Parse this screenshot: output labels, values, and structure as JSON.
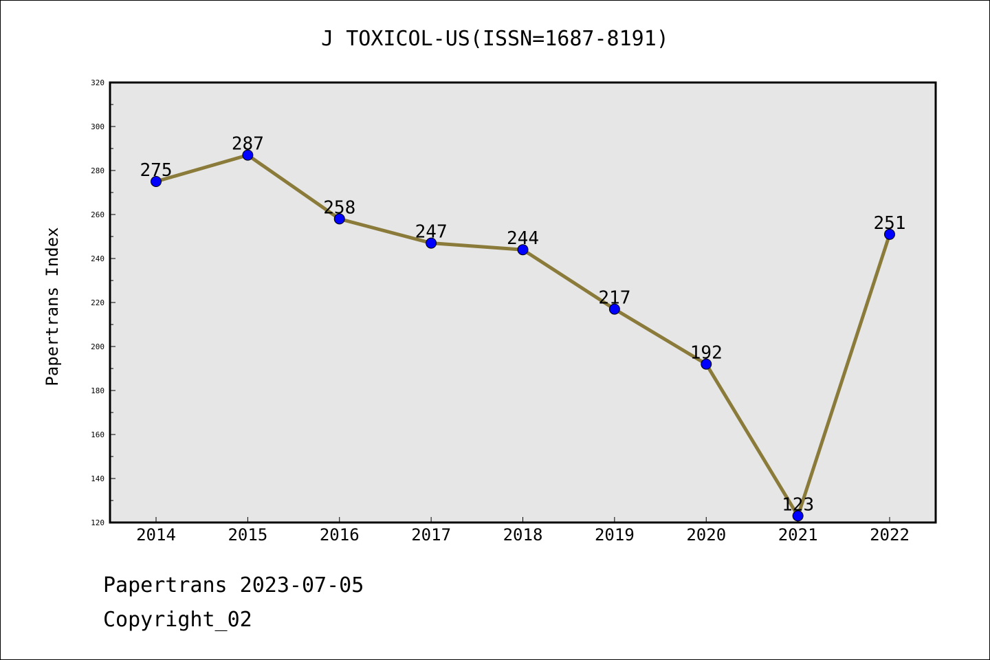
{
  "chart_data": {
    "type": "line",
    "title": "J TOXICOL-US(ISSN=1687-8191)",
    "xlabel": "",
    "ylabel": "Papertrans Index",
    "categories": [
      "2014",
      "2015",
      "2016",
      "2017",
      "2018",
      "2019",
      "2020",
      "2021",
      "2022"
    ],
    "series": [
      {
        "values": [
          275,
          287,
          258,
          247,
          244,
          217,
          192,
          123,
          251
        ]
      }
    ],
    "ylim": [
      120,
      320
    ],
    "yticks": [
      120,
      140,
      160,
      180,
      200,
      220,
      240,
      260,
      280,
      300,
      320
    ],
    "grid": false,
    "data_labels": true,
    "colors": {
      "line": "#8B7B3A",
      "marker": "#0000FF",
      "plot_background": "#E6E6E6",
      "axes": "#000000"
    }
  },
  "footer": {
    "date_text": "Papertrans 2023-07-05",
    "copyright_text": "Copyright_02"
  }
}
